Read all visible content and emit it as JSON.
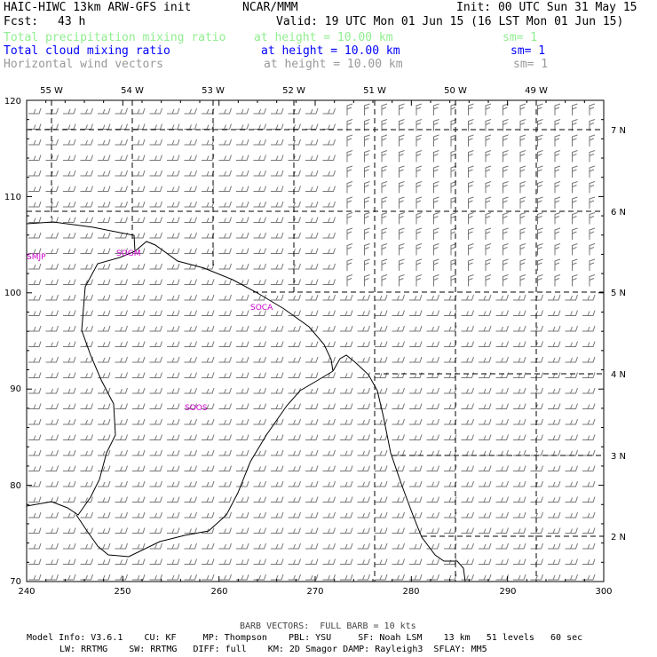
{
  "header": {
    "line1_left": "HAIC-HIWC 13km ARW-GFS init",
    "line1_mid": "NCAR/MMM",
    "line1_right": "Init: 00 UTC Sun 31 May 15",
    "fcst_label": "Fcst:",
    "fcst_value": "43 h",
    "valid": "Valid: 19 UTC Mon 01 Jun 15 (16 LST Mon 01 Jun 15)"
  },
  "fields": [
    {
      "name": "Total precipitation mixing ratio",
      "level": "at height = 10.00 km",
      "sm": "sm= 1",
      "color": "#90ee90"
    },
    {
      "name": "Total cloud mixing ratio",
      "level": "at height = 10.00 km",
      "sm": "sm= 1",
      "color": "#0000ff"
    },
    {
      "name": "Horizontal wind vectors",
      "level": "at height = 10.00 km",
      "sm": "sm= 1",
      "color": "#999999"
    }
  ],
  "map": {
    "grid_x_range": [
      240,
      300
    ],
    "grid_y_range": [
      70,
      120
    ],
    "bottom_ticks": [
      "240",
      "250",
      "260",
      "270",
      "280",
      "290",
      "300"
    ],
    "left_ticks": [
      "70",
      "80",
      "90",
      "100",
      "110",
      "120"
    ],
    "top_lon_labels": [
      "55 W",
      "54 W",
      "53 W",
      "52 W",
      "51 W",
      "50 W",
      "49 W"
    ],
    "right_lat_labels": [
      "2 N",
      "3 N",
      "4 N",
      "5 N",
      "6 N",
      "7 N"
    ],
    "stations": [
      "SMJP",
      "SOGM",
      "SOCA",
      "SOOS"
    ],
    "coast_color": "#000000",
    "station_color": "#cc00cc",
    "barb_color": "#777777"
  },
  "footer": {
    "barb_note": "BARB VECTORS:  FULL BARB = 10 kts",
    "model_line1": "Model Info: V3.6.1    CU: KF     MP: Thompson    PBL: YSU     SF: Noah LSM    13 km   51 levels   60 sec",
    "model_line2": "LW: RRTMG    SW: RRTMG   DIFF: full    KM: 2D Smagor DAMP: Rayleigh3  SFLAY: MM5"
  }
}
